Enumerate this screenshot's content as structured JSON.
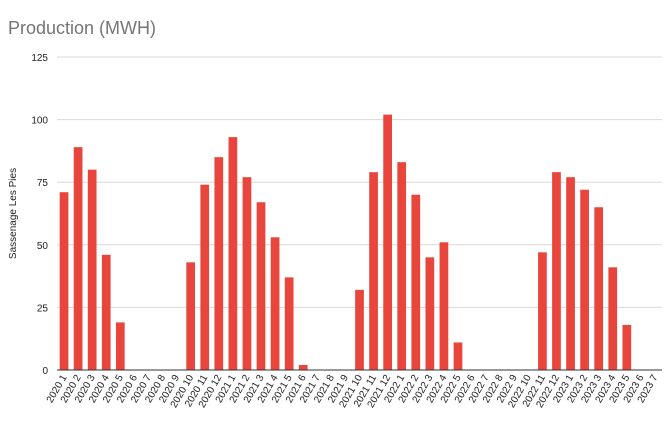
{
  "chart_data": {
    "type": "bar",
    "title": "Production (MWH)",
    "xlabel": "",
    "ylabel": "Sassenage Les Pies",
    "ylim": [
      0,
      125
    ],
    "yticks": [
      0,
      25,
      50,
      75,
      100,
      125
    ],
    "grid": true,
    "legend": "none",
    "colors": {
      "bar": "#e8453c",
      "grid": "#d9d9d9",
      "axis": "#333333",
      "tick_text": "#222222",
      "title": "#757575"
    },
    "categories": [
      "2020 1",
      "2020 2",
      "2020 3",
      "2020 4",
      "2020 5",
      "2020 6",
      "2020 7",
      "2020 8",
      "2020 9",
      "2020 10",
      "2020 11",
      "2020 12",
      "2021 1",
      "2021 2",
      "2021 3",
      "2021 4",
      "2021 5",
      "2021 6",
      "2021 7",
      "2021 8",
      "2021 9",
      "2021 10",
      "2021 11",
      "2021 12",
      "2022 1",
      "2022 2",
      "2022 3",
      "2022 4",
      "2022 5",
      "2022 6",
      "2022 7",
      "2022 8",
      "2022 9",
      "2022 10",
      "2022 11",
      "2022 12",
      "2023 1",
      "2023 2",
      "2023 3",
      "2023 4",
      "2023 5",
      "2023 6",
      "2023 7"
    ],
    "values": [
      71,
      89,
      80,
      46,
      19,
      0,
      0,
      0,
      0,
      43,
      74,
      85,
      93,
      77,
      67,
      53,
      37,
      2,
      0,
      0,
      0,
      32,
      79,
      102,
      83,
      70,
      45,
      51,
      11,
      0,
      0,
      0,
      0,
      0,
      47,
      79,
      77,
      72,
      65,
      41,
      18,
      0,
      0
    ]
  }
}
